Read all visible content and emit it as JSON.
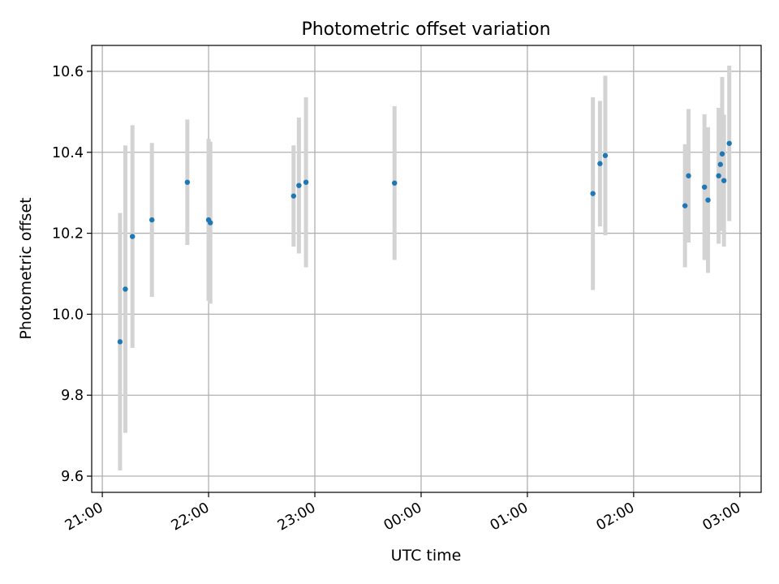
{
  "chart_data": {
    "type": "scatter",
    "title": "Photometric offset variation",
    "xlabel": "UTC time",
    "ylabel": "Photometric offset",
    "x_axis": {
      "type": "time",
      "start": "21:00",
      "range_hours": [
        -0.1,
        6.2
      ],
      "ticks": [
        {
          "hour": 0,
          "label": "21:00"
        },
        {
          "hour": 1,
          "label": "22:00"
        },
        {
          "hour": 2,
          "label": "23:00"
        },
        {
          "hour": 3,
          "label": "00:00"
        },
        {
          "hour": 4,
          "label": "01:00"
        },
        {
          "hour": 5,
          "label": "02:00"
        },
        {
          "hour": 6,
          "label": "03:00"
        }
      ]
    },
    "y_axis": {
      "range": [
        9.56,
        10.664
      ],
      "ticks": [
        {
          "value": 9.6,
          "label": "9.6"
        },
        {
          "value": 9.8,
          "label": "9.8"
        },
        {
          "value": 10.0,
          "label": "10.0"
        },
        {
          "value": 10.2,
          "label": "10.2"
        },
        {
          "value": 10.4,
          "label": "10.4"
        },
        {
          "value": 10.6,
          "label": "10.6"
        }
      ]
    },
    "grid": true,
    "legend": "none",
    "colors": {
      "point": "#1f77b4",
      "errorbar": "#d3d3d3",
      "grid": "#b0b0b0",
      "frame": "#000000"
    },
    "points": [
      {
        "time": "21:10",
        "y": 9.932,
        "err": 0.318
      },
      {
        "time": "21:13",
        "y": 10.062,
        "err": 0.355
      },
      {
        "time": "21:17",
        "y": 10.192,
        "err": 0.275
      },
      {
        "time": "21:28",
        "y": 10.233,
        "err": 0.19
      },
      {
        "time": "21:48",
        "y": 10.326,
        "err": 0.155
      },
      {
        "time": "22:00",
        "y": 10.233,
        "err": 0.2
      },
      {
        "time": "22:01",
        "y": 10.226,
        "err": 0.2
      },
      {
        "time": "22:48",
        "y": 10.292,
        "err": 0.125
      },
      {
        "time": "22:51",
        "y": 10.318,
        "err": 0.168
      },
      {
        "time": "22:55",
        "y": 10.326,
        "err": 0.21
      },
      {
        "time": "23:45",
        "y": 10.324,
        "err": 0.19
      },
      {
        "time": "01:37",
        "y": 10.298,
        "err": 0.238
      },
      {
        "time": "01:41",
        "y": 10.372,
        "err": 0.155
      },
      {
        "time": "01:44",
        "y": 10.392,
        "err": 0.197
      },
      {
        "time": "02:29",
        "y": 10.268,
        "err": 0.152
      },
      {
        "time": "02:31",
        "y": 10.342,
        "err": 0.165
      },
      {
        "time": "02:40",
        "y": 10.314,
        "err": 0.18
      },
      {
        "time": "02:42",
        "y": 10.282,
        "err": 0.18
      },
      {
        "time": "02:48",
        "y": 10.342,
        "err": 0.168
      },
      {
        "time": "02:49",
        "y": 10.37,
        "err": 0.138
      },
      {
        "time": "02:50",
        "y": 10.396,
        "err": 0.19
      },
      {
        "time": "02:51",
        "y": 10.33,
        "err": 0.163
      },
      {
        "time": "02:54",
        "y": 10.422,
        "err": 0.192
      }
    ]
  }
}
